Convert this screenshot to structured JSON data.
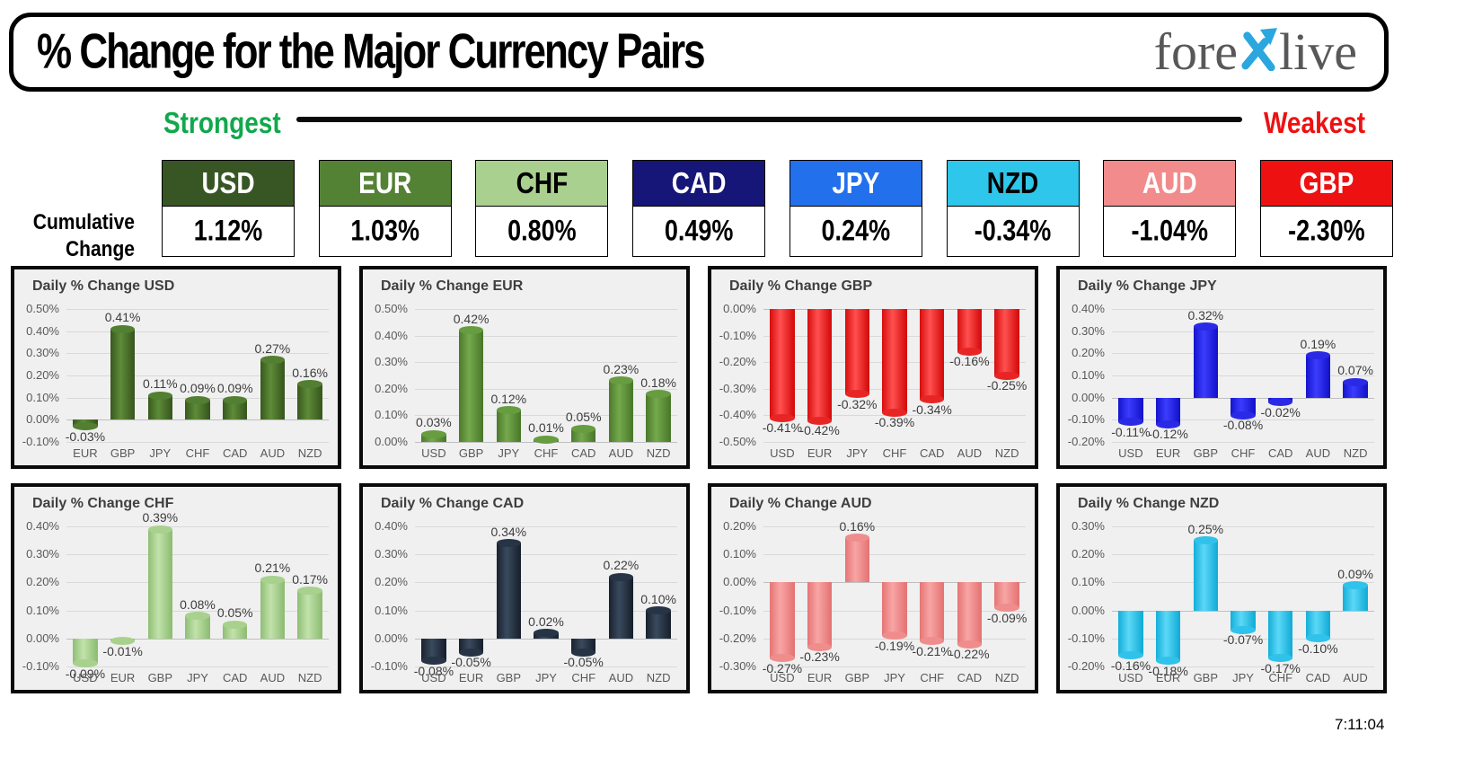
{
  "header": {
    "title": "% Change for the Major Currency Pairs",
    "logo": {
      "part1": "fore",
      "part2": "live",
      "x_color": "#2ba7df",
      "text_color": "#58585a"
    }
  },
  "legend": {
    "strongest": "Strongest",
    "weakest": "Weakest",
    "strongest_color": "#11a84c",
    "weakest_color": "#ee1111"
  },
  "cumulative": {
    "label_line1": "Cumulative",
    "label_line2": "Change",
    "items": [
      {
        "currency": "USD",
        "value": "1.12%",
        "bg": "#375623",
        "fg": "#ffffff"
      },
      {
        "currency": "EUR",
        "value": "1.03%",
        "bg": "#548235",
        "fg": "#ffffff"
      },
      {
        "currency": "CHF",
        "value": "0.80%",
        "bg": "#a9d08e",
        "fg": "#000000"
      },
      {
        "currency": "CAD",
        "value": "0.49%",
        "bg": "#161678",
        "fg": "#ffffff"
      },
      {
        "currency": "JPY",
        "value": "0.24%",
        "bg": "#2370ed",
        "fg": "#ffffff"
      },
      {
        "currency": "NZD",
        "value": "-0.34%",
        "bg": "#2ec6ea",
        "fg": "#000000"
      },
      {
        "currency": "AUD",
        "value": "-1.04%",
        "bg": "#f28b8b",
        "fg": "#ffffff"
      },
      {
        "currency": "GBP",
        "value": "-2.30%",
        "bg": "#ee1111",
        "fg": "#ffffff"
      }
    ]
  },
  "chart_data": [
    {
      "type": "bar",
      "title": "Daily % Change USD",
      "categories": [
        "EUR",
        "GBP",
        "JPY",
        "CHF",
        "CAD",
        "AUD",
        "NZD"
      ],
      "values": [
        -0.03,
        0.41,
        0.11,
        0.09,
        0.09,
        0.27,
        0.16
      ],
      "labels": [
        "-0.03%",
        "0.41%",
        "0.11%",
        "0.09%",
        "0.09%",
        "0.27%",
        "0.16%"
      ],
      "tick_labels": [
        "0.50%",
        "0.40%",
        "0.30%",
        "0.20%",
        "0.10%",
        "0.00%",
        "-0.10%"
      ],
      "ylim": [
        -0.1,
        0.5
      ],
      "grid": true,
      "colors": {
        "edge": "#39581f",
        "mid": "#5d8c38",
        "cap": "#527f31"
      }
    },
    {
      "type": "bar",
      "title": "Daily % Change EUR",
      "categories": [
        "USD",
        "GBP",
        "JPY",
        "CHF",
        "CAD",
        "AUD",
        "NZD"
      ],
      "values": [
        0.03,
        0.42,
        0.12,
        0.01,
        0.05,
        0.23,
        0.18
      ],
      "labels": [
        "0.03%",
        "0.42%",
        "0.12%",
        "0.01%",
        "0.05%",
        "0.23%",
        "0.18%"
      ],
      "tick_labels": [
        "0.50%",
        "0.40%",
        "0.30%",
        "0.20%",
        "0.10%",
        "0.00%"
      ],
      "ylim": [
        0.0,
        0.5
      ],
      "grid": true,
      "colors": {
        "edge": "#4c7a2c",
        "mid": "#74a94c",
        "cap": "#679c41"
      }
    },
    {
      "type": "bar",
      "title": "Daily % Change GBP",
      "categories": [
        "USD",
        "EUR",
        "JPY",
        "CHF",
        "CAD",
        "AUD",
        "NZD"
      ],
      "values": [
        -0.41,
        -0.42,
        -0.32,
        -0.39,
        -0.34,
        -0.16,
        -0.25
      ],
      "labels": [
        "-0.41%",
        "-0.42%",
        "-0.32%",
        "-0.39%",
        "-0.34%",
        "-0.16%",
        "-0.25%"
      ],
      "tick_labels": [
        "0.00%",
        "-0.10%",
        "-0.20%",
        "-0.30%",
        "-0.40%",
        "-0.50%"
      ],
      "ylim": [
        -0.5,
        0.0
      ],
      "grid": true,
      "colors": {
        "edge": "#d60d0d",
        "mid": "#ff5050",
        "cap": "#e82525"
      }
    },
    {
      "type": "bar",
      "title": "Daily % Change JPY",
      "categories": [
        "USD",
        "EUR",
        "GBP",
        "CHF",
        "CAD",
        "AUD",
        "NZD"
      ],
      "values": [
        -0.11,
        -0.12,
        0.32,
        -0.08,
        -0.02,
        0.19,
        0.07
      ],
      "labels": [
        "-0.11%",
        "-0.12%",
        "0.32%",
        "-0.08%",
        "-0.02%",
        "0.19%",
        "0.07%"
      ],
      "tick_labels": [
        "0.40%",
        "0.30%",
        "0.20%",
        "0.10%",
        "0.00%",
        "-0.10%",
        "-0.20%"
      ],
      "ylim": [
        -0.2,
        0.4
      ],
      "grid": true,
      "colors": {
        "edge": "#1414cc",
        "mid": "#3c3cff",
        "cap": "#2a2ae6"
      }
    },
    {
      "type": "bar",
      "title": "Daily % Change CHF",
      "categories": [
        "USD",
        "EUR",
        "GBP",
        "JPY",
        "CAD",
        "AUD",
        "NZD"
      ],
      "values": [
        -0.09,
        -0.01,
        0.39,
        0.08,
        0.05,
        0.21,
        0.17
      ],
      "labels": [
        "-0.09%",
        "-0.01%",
        "0.39%",
        "0.08%",
        "0.05%",
        "0.21%",
        "0.17%"
      ],
      "tick_labels": [
        "0.40%",
        "0.30%",
        "0.20%",
        "0.10%",
        "0.00%",
        "-0.10%"
      ],
      "ylim": [
        -0.1,
        0.4
      ],
      "grid": true,
      "colors": {
        "edge": "#8fbe75",
        "mid": "#c2e2ab",
        "cap": "#a8d18d"
      }
    },
    {
      "type": "bar",
      "title": "Daily % Change CAD",
      "categories": [
        "USD",
        "EUR",
        "GBP",
        "JPY",
        "CHF",
        "AUD",
        "NZD"
      ],
      "values": [
        -0.08,
        -0.05,
        0.34,
        0.02,
        -0.05,
        0.22,
        0.1
      ],
      "labels": [
        "-0.08%",
        "-0.05%",
        "0.34%",
        "0.02%",
        "-0.05%",
        "0.22%",
        "0.10%"
      ],
      "tick_labels": [
        "0.40%",
        "0.30%",
        "0.20%",
        "0.10%",
        "0.00%",
        "-0.10%"
      ],
      "ylim": [
        -0.1,
        0.4
      ],
      "grid": true,
      "colors": {
        "edge": "#19222e",
        "mid": "#394a5e",
        "cap": "#273446"
      }
    },
    {
      "type": "bar",
      "title": "Daily % Change AUD",
      "categories": [
        "USD",
        "EUR",
        "GBP",
        "JPY",
        "CHF",
        "CAD",
        "NZD"
      ],
      "values": [
        -0.27,
        -0.23,
        0.16,
        -0.19,
        -0.21,
        -0.22,
        -0.09
      ],
      "labels": [
        "-0.27%",
        "-0.23%",
        "0.16%",
        "-0.19%",
        "-0.21%",
        "-0.22%",
        "-0.09%"
      ],
      "tick_labels": [
        "0.20%",
        "0.10%",
        "0.00%",
        "-0.10%",
        "-0.20%",
        "-0.30%"
      ],
      "ylim": [
        -0.3,
        0.2
      ],
      "grid": true,
      "colors": {
        "edge": "#e57575",
        "mid": "#f8a5a5",
        "cap": "#ef8d8d"
      }
    },
    {
      "type": "bar",
      "title": "Daily % Change NZD",
      "categories": [
        "USD",
        "EUR",
        "GBP",
        "JPY",
        "CHF",
        "CAD",
        "AUD"
      ],
      "values": [
        -0.16,
        -0.18,
        0.25,
        -0.07,
        -0.17,
        -0.1,
        0.09
      ],
      "labels": [
        "-0.16%",
        "-0.18%",
        "0.25%",
        "-0.07%",
        "-0.17%",
        "-0.10%",
        "0.09%"
      ],
      "tick_labels": [
        "0.30%",
        "0.20%",
        "0.10%",
        "0.00%",
        "-0.10%",
        "-0.20%"
      ],
      "ylim": [
        -0.2,
        0.3
      ],
      "grid": true,
      "colors": {
        "edge": "#14aed8",
        "mid": "#5cd8f8",
        "cap": "#30c2ea"
      }
    }
  ],
  "footer": {
    "timestamp": "7:11:04"
  }
}
